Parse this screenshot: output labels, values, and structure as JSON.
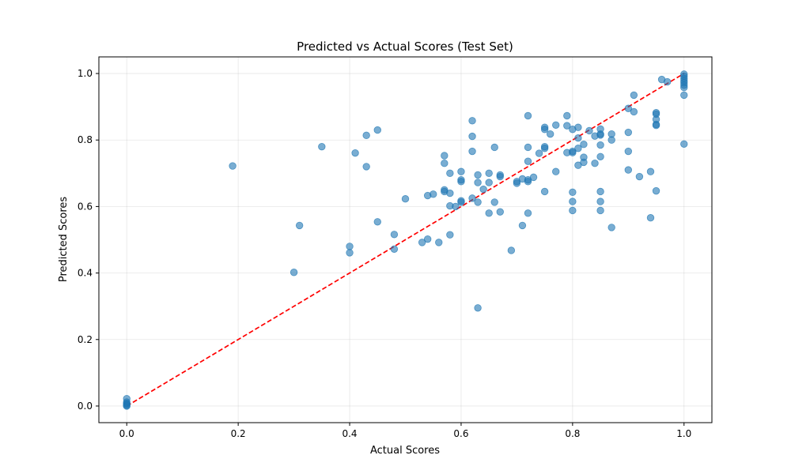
{
  "chart_data": {
    "type": "scatter",
    "title": "Predicted vs Actual Scores (Test Set)",
    "xlabel": "Actual Scores",
    "ylabel": "Predicted Scores",
    "xlim": [
      -0.05,
      1.05
    ],
    "ylim": [
      -0.05,
      1.05
    ],
    "xticks": [
      0.0,
      0.2,
      0.4,
      0.6,
      0.8,
      1.0
    ],
    "yticks": [
      0.0,
      0.2,
      0.4,
      0.6,
      0.8,
      1.0
    ],
    "xtick_labels": [
      "0.0",
      "0.2",
      "0.4",
      "0.6",
      "0.8",
      "1.0"
    ],
    "ytick_labels": [
      "0.0",
      "0.2",
      "0.4",
      "0.6",
      "0.8",
      "1.0"
    ],
    "grid": true,
    "colors": {
      "points": "#1f77b4",
      "reference_line": "#ff0000"
    },
    "reference_line": {
      "style": "dashed",
      "from": [
        0,
        0
      ],
      "to": [
        1,
        1
      ]
    },
    "points": [
      [
        0.0,
        0.0
      ],
      [
        0.0,
        0.002
      ],
      [
        0.0,
        0.005
      ],
      [
        0.0,
        0.008
      ],
      [
        0.0,
        0.012
      ],
      [
        0.0,
        0.022
      ],
      [
        0.19,
        0.722
      ],
      [
        0.3,
        0.402
      ],
      [
        0.31,
        0.543
      ],
      [
        0.35,
        0.78
      ],
      [
        0.4,
        0.48
      ],
      [
        0.4,
        0.461
      ],
      [
        0.41,
        0.761
      ],
      [
        0.43,
        0.814
      ],
      [
        0.43,
        0.72
      ],
      [
        0.45,
        0.83
      ],
      [
        0.45,
        0.554
      ],
      [
        0.48,
        0.516
      ],
      [
        0.48,
        0.472
      ],
      [
        0.5,
        0.623
      ],
      [
        0.53,
        0.492
      ],
      [
        0.54,
        0.502
      ],
      [
        0.54,
        0.633
      ],
      [
        0.55,
        0.637
      ],
      [
        0.56,
        0.492
      ],
      [
        0.57,
        0.753
      ],
      [
        0.57,
        0.73
      ],
      [
        0.57,
        0.65
      ],
      [
        0.57,
        0.645
      ],
      [
        0.58,
        0.7
      ],
      [
        0.58,
        0.64
      ],
      [
        0.58,
        0.602
      ],
      [
        0.58,
        0.515
      ],
      [
        0.59,
        0.6
      ],
      [
        0.6,
        0.705
      ],
      [
        0.6,
        0.68
      ],
      [
        0.6,
        0.675
      ],
      [
        0.6,
        0.617
      ],
      [
        0.6,
        0.613
      ],
      [
        0.62,
        0.858
      ],
      [
        0.62,
        0.811
      ],
      [
        0.62,
        0.766
      ],
      [
        0.62,
        0.625
      ],
      [
        0.63,
        0.695
      ],
      [
        0.63,
        0.672
      ],
      [
        0.63,
        0.613
      ],
      [
        0.63,
        0.295
      ],
      [
        0.64,
        0.652
      ],
      [
        0.65,
        0.7
      ],
      [
        0.65,
        0.672
      ],
      [
        0.65,
        0.58
      ],
      [
        0.66,
        0.778
      ],
      [
        0.66,
        0.613
      ],
      [
        0.67,
        0.695
      ],
      [
        0.67,
        0.69
      ],
      [
        0.67,
        0.584
      ],
      [
        0.69,
        0.468
      ],
      [
        0.7,
        0.675
      ],
      [
        0.7,
        0.67
      ],
      [
        0.71,
        0.683
      ],
      [
        0.71,
        0.543
      ],
      [
        0.72,
        0.873
      ],
      [
        0.72,
        0.778
      ],
      [
        0.72,
        0.736
      ],
      [
        0.72,
        0.68
      ],
      [
        0.72,
        0.675
      ],
      [
        0.72,
        0.58
      ],
      [
        0.73,
        0.688
      ],
      [
        0.74,
        0.76
      ],
      [
        0.75,
        0.838
      ],
      [
        0.75,
        0.832
      ],
      [
        0.75,
        0.78
      ],
      [
        0.75,
        0.775
      ],
      [
        0.75,
        0.645
      ],
      [
        0.76,
        0.818
      ],
      [
        0.77,
        0.845
      ],
      [
        0.77,
        0.705
      ],
      [
        0.79,
        0.873
      ],
      [
        0.79,
        0.843
      ],
      [
        0.79,
        0.762
      ],
      [
        0.8,
        0.832
      ],
      [
        0.8,
        0.766
      ],
      [
        0.8,
        0.762
      ],
      [
        0.8,
        0.643
      ],
      [
        0.8,
        0.615
      ],
      [
        0.8,
        0.588
      ],
      [
        0.81,
        0.838
      ],
      [
        0.81,
        0.806
      ],
      [
        0.81,
        0.775
      ],
      [
        0.81,
        0.724
      ],
      [
        0.82,
        0.787
      ],
      [
        0.82,
        0.748
      ],
      [
        0.82,
        0.733
      ],
      [
        0.83,
        0.828
      ],
      [
        0.84,
        0.812
      ],
      [
        0.84,
        0.73
      ],
      [
        0.85,
        0.833
      ],
      [
        0.85,
        0.818
      ],
      [
        0.85,
        0.815
      ],
      [
        0.85,
        0.785
      ],
      [
        0.85,
        0.75
      ],
      [
        0.85,
        0.645
      ],
      [
        0.85,
        0.615
      ],
      [
        0.85,
        0.588
      ],
      [
        0.87,
        0.818
      ],
      [
        0.87,
        0.8
      ],
      [
        0.87,
        0.537
      ],
      [
        0.9,
        0.895
      ],
      [
        0.9,
        0.823
      ],
      [
        0.9,
        0.766
      ],
      [
        0.9,
        0.71
      ],
      [
        0.91,
        0.935
      ],
      [
        0.91,
        0.885
      ],
      [
        0.92,
        0.69
      ],
      [
        0.94,
        0.705
      ],
      [
        0.94,
        0.566
      ],
      [
        0.95,
        0.882
      ],
      [
        0.95,
        0.878
      ],
      [
        0.95,
        0.862
      ],
      [
        0.95,
        0.847
      ],
      [
        0.95,
        0.844
      ],
      [
        0.95,
        0.647
      ],
      [
        0.96,
        0.982
      ],
      [
        0.97,
        0.975
      ],
      [
        1.0,
        0.998
      ],
      [
        1.0,
        0.992
      ],
      [
        1.0,
        0.985
      ],
      [
        1.0,
        0.978
      ],
      [
        1.0,
        0.972
      ],
      [
        1.0,
        0.965
      ],
      [
        1.0,
        0.958
      ],
      [
        1.0,
        0.935
      ],
      [
        1.0,
        0.788
      ]
    ]
  }
}
